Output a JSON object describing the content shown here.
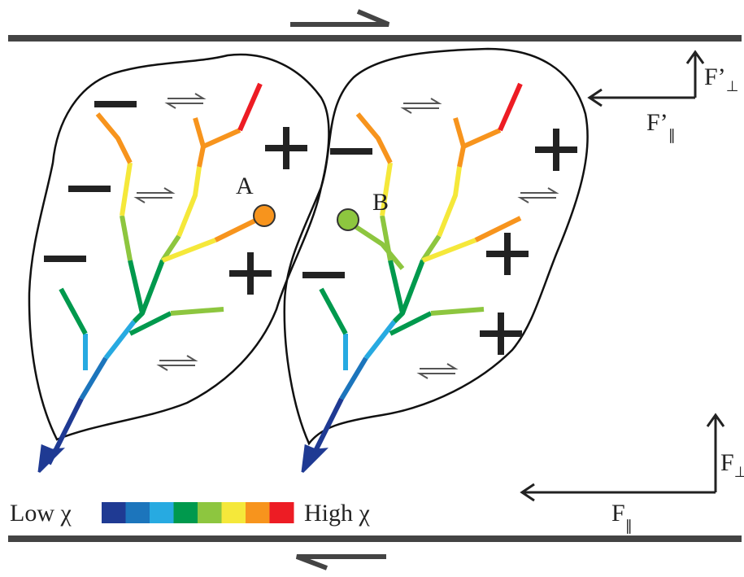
{
  "points": {
    "a": "A",
    "b": "B"
  },
  "legend": {
    "low": "Low χ",
    "high": "High χ"
  },
  "forces": {
    "top_perp": {
      "main": "F’",
      "sub": "⊥"
    },
    "top_par": {
      "main": "F’",
      "sub": "∥"
    },
    "bottom_perp": {
      "main": "F",
      "sub": "⊥"
    },
    "bottom_par": {
      "main": "F",
      "sub": "∥"
    }
  }
}
